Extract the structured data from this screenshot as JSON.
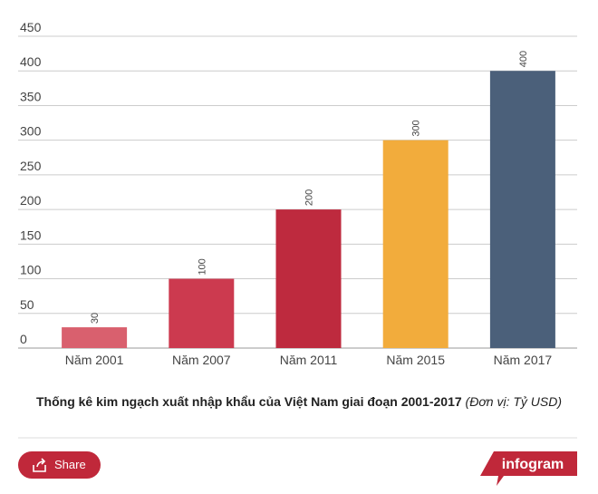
{
  "chart_data": {
    "type": "bar",
    "title": "Thống kê kim ngạch xuất nhập khẩu của Việt Nam giai đoạn 2001-2017",
    "subtitle": "(Đơn vị: Tỷ USD)",
    "categories": [
      "Năm 2001",
      "Năm 2007",
      "Năm 2011",
      "Năm 2015",
      "Năm 2017"
    ],
    "values": [
      30,
      100,
      200,
      300,
      400
    ],
    "colors": [
      "#d9606e",
      "#cc3a4f",
      "#be2a3e",
      "#f2ac3c",
      "#4b607a"
    ],
    "ylim": [
      0,
      450
    ],
    "yticks": [
      0,
      50,
      100,
      150,
      200,
      250,
      300,
      350,
      400,
      450
    ],
    "grid": true
  },
  "footer": {
    "share": "Share",
    "brand": "infogram"
  }
}
